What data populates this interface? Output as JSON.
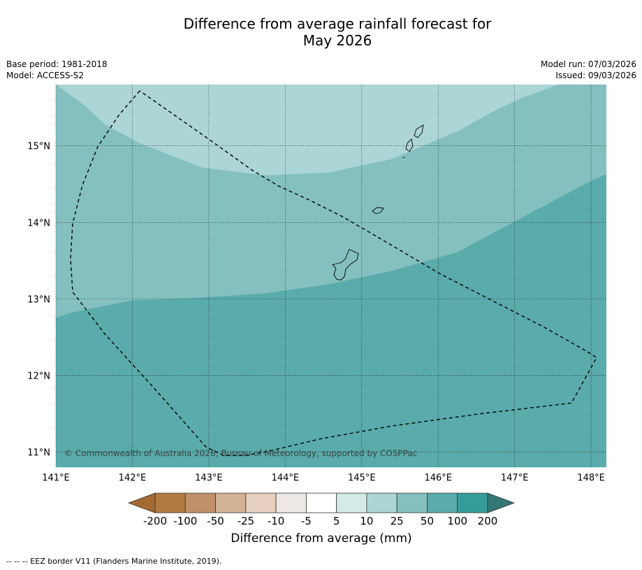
{
  "title_line1": "Difference from average rainfall forecast for",
  "title_line2": "May 2026",
  "meta_left": [
    "Base period: 1981-2018",
    "Model: ACCESS-S2"
  ],
  "meta_right": [
    "Model run: 07/03/2026",
    "Issued: 09/03/2026"
  ],
  "map": {
    "lon_range": [
      141.0,
      148.2
    ],
    "lat_range": [
      10.8,
      15.8
    ],
    "lon_ticks": [
      141,
      142,
      143,
      144,
      145,
      146,
      147,
      148
    ],
    "lon_tick_labels": [
      "141°E",
      "142°E",
      "143°E",
      "144°E",
      "145°E",
      "146°E",
      "147°E",
      "148°E"
    ],
    "lat_ticks": [
      11,
      12,
      13,
      14,
      15
    ],
    "lat_tick_labels": [
      "11°N",
      "12°N",
      "13°N",
      "14°N",
      "15°N"
    ],
    "grid": true,
    "copyright": "© Commonwealth of Australia 2026, Bureau of Meteorology, supported by COSPPac"
  },
  "colorbar": {
    "ticks": [
      "-200",
      "-100",
      "-50",
      "-25",
      "-10",
      "-5",
      "5",
      "10",
      "25",
      "50",
      "100",
      "200"
    ],
    "colors": [
      "#a46a31",
      "#b07a40",
      "#c0906a",
      "#d4b294",
      "#e8d0c0",
      "#efe9e6",
      "#ffffff",
      "#d4eae8",
      "#acd5d5",
      "#84c0c0",
      "#5aabab",
      "#369c9a",
      "#347676"
    ],
    "label": "Difference from average (mm)"
  },
  "footnote": "--  --  -- EEZ border V11 (Flanders Marine Institute, 2019)."
}
